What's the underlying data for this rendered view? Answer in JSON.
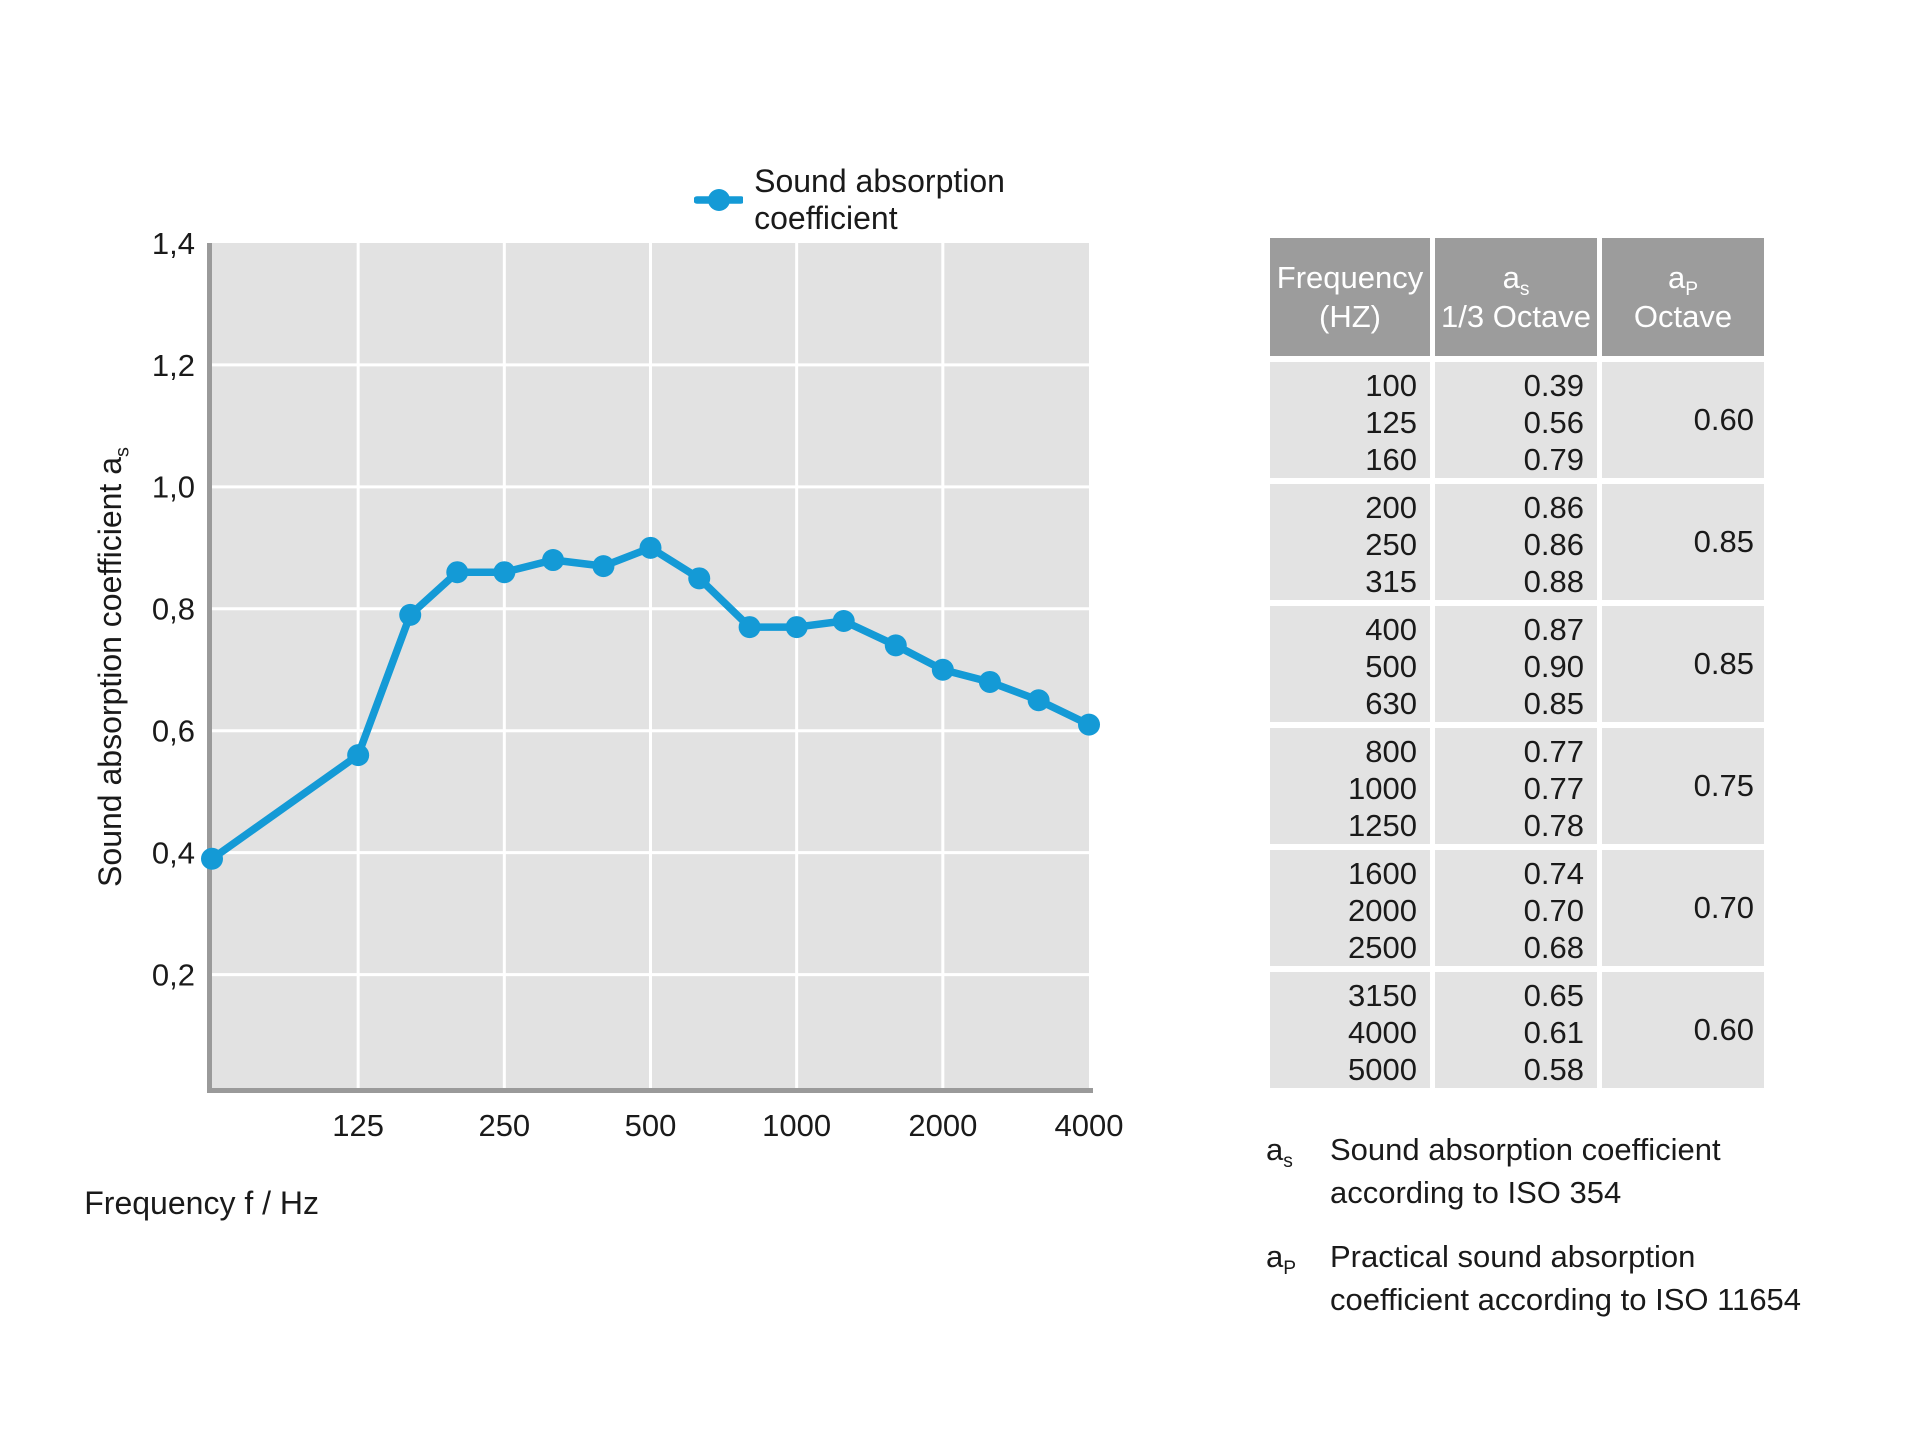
{
  "chart_data": {
    "type": "line",
    "legend": [
      "Sound absorption coefficient"
    ],
    "xlabel": "Frequency f / Hz",
    "ylabel": "Sound absorption coefficient as",
    "x": [
      100,
      125,
      160,
      200,
      250,
      315,
      400,
      500,
      630,
      800,
      1000,
      1250,
      1600,
      2000,
      2500,
      3150,
      4000
    ],
    "series": [
      {
        "name": "Sound absorption coefficient",
        "values": [
          0.39,
          0.56,
          0.79,
          0.86,
          0.86,
          0.88,
          0.87,
          0.9,
          0.85,
          0.77,
          0.77,
          0.78,
          0.74,
          0.7,
          0.68,
          0.65,
          0.61
        ]
      }
    ],
    "x_scale": "log2",
    "x_range_hz": [
      62.5,
      4000
    ],
    "first_point_pinned_to_axis_start": true,
    "ylim": [
      0.014,
      1.4
    ],
    "y_ticks": [
      {
        "label": "1,4",
        "value": 1.4
      },
      {
        "label": "1,2",
        "value": 1.2
      },
      {
        "label": "1,0",
        "value": 1.0
      },
      {
        "label": "0,8",
        "value": 0.8
      },
      {
        "label": "0,6",
        "value": 0.6
      },
      {
        "label": "0,4",
        "value": 0.4
      },
      {
        "label": "0,2",
        "value": 0.2
      }
    ],
    "x_ticks": [
      {
        "label": "125",
        "hz": 125
      },
      {
        "label": "250",
        "hz": 250
      },
      {
        "label": "500",
        "hz": 500
      },
      {
        "label": "1000",
        "hz": 1000
      },
      {
        "label": "2000",
        "hz": 2000
      },
      {
        "label": "4000",
        "hz": 4000
      }
    ],
    "grid": true,
    "legend_position": "top-right",
    "colors": {
      "line": "#149ad6",
      "plot_bg": "#e2e2e2",
      "grid": "#ffffff",
      "axis": "#9a9a9a",
      "text": "#1a1a1a"
    }
  },
  "chart": {
    "legend": {
      "label": "Sound absorption coefficient"
    },
    "y_axis": {
      "title_text": "Sound absorption coefficient a",
      "title_sub": "s"
    },
    "x_axis": {
      "title": "Frequency f / Hz"
    }
  },
  "table": {
    "header": [
      {
        "line1": "Frequency",
        "line2": "(HZ)"
      },
      {
        "symbol": "a",
        "sub": "s",
        "line2": "1/3 Octave"
      },
      {
        "symbol": "a",
        "sub": "P",
        "line2": "Octave"
      }
    ],
    "groups": [
      {
        "freqs": [
          "100",
          "125",
          "160"
        ],
        "as_values": [
          "0.39",
          "0.56",
          "0.79"
        ],
        "ap": "0.60"
      },
      {
        "freqs": [
          "200",
          "250",
          "315"
        ],
        "as_values": [
          "0.86",
          "0.86",
          "0.88"
        ],
        "ap": "0.85"
      },
      {
        "freqs": [
          "400",
          "500",
          "630"
        ],
        "as_values": [
          "0.87",
          "0.90",
          "0.85"
        ],
        "ap": "0.85"
      },
      {
        "freqs": [
          "800",
          "1000",
          "1250"
        ],
        "as_values": [
          "0.77",
          "0.77",
          "0.78"
        ],
        "ap": "0.75"
      },
      {
        "freqs": [
          "1600",
          "2000",
          "2500"
        ],
        "as_values": [
          "0.74",
          "0.70",
          "0.68"
        ],
        "ap": "0.70"
      },
      {
        "freqs": [
          "3150",
          "4000",
          "5000"
        ],
        "as_values": [
          "0.65",
          "0.61",
          "0.58"
        ],
        "ap": "0.60"
      }
    ]
  },
  "footnotes": [
    {
      "symbol": "a",
      "sub": "s",
      "lines": [
        "Sound absorption coefficient",
        "according to ISO 354"
      ]
    },
    {
      "symbol": "a",
      "sub": "P",
      "lines": [
        "Practical sound absorption",
        "coefficient according to ISO 11654"
      ]
    }
  ]
}
